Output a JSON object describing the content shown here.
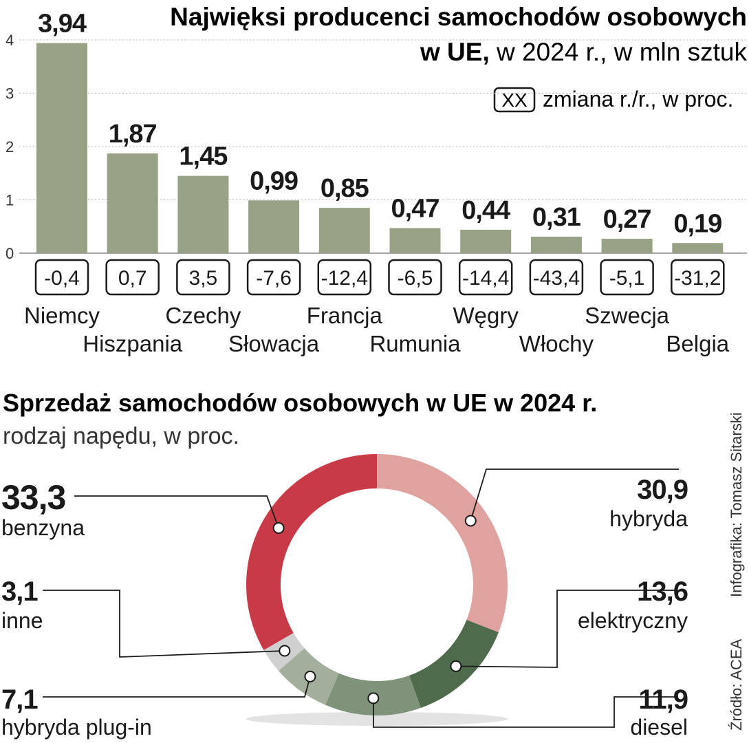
{
  "chart_data": [
    {
      "type": "bar",
      "title": "Najwięksi producenci samochodów osobowych",
      "subtitle_bold": "w UE,",
      "subtitle": " w 2024 r., w mln sztuk",
      "legend_box": "XX",
      "legend_text": "zmiana r./r., w proc.",
      "categories": [
        "Niemcy",
        "Hiszpania",
        "Czechy",
        "Słowacja",
        "Francja",
        "Rumunia",
        "Węgry",
        "Włochy",
        "Szwecja",
        "Belgia"
      ],
      "values": [
        3.94,
        1.87,
        1.45,
        0.99,
        0.85,
        0.47,
        0.44,
        0.31,
        0.27,
        0.19
      ],
      "value_labels": [
        "3,94",
        "1,87",
        "1,45",
        "0,99",
        "0,85",
        "0,47",
        "0,44",
        "0,31",
        "0,27",
        "0,19"
      ],
      "changes": [
        "-0,4",
        "0,7",
        "3,5",
        "-7,6",
        "-12,4",
        "-6,5",
        "-14,4",
        "-43,4",
        "-5,1",
        "-31,2"
      ],
      "yticks": [
        "0",
        "1",
        "2",
        "3",
        "4"
      ],
      "ylim": [
        0,
        4
      ],
      "grid": true,
      "bar_color": "#97a184"
    },
    {
      "type": "pie",
      "title": "Sprzedaż samochodów osobowych w UE w 2024 r.",
      "subtitle": "rodzaj napędu, w proc.",
      "slices": [
        {
          "name": "hybryda",
          "value": 30.9,
          "label": "30,9",
          "color": "#dfa29e"
        },
        {
          "name": "elektryczny",
          "value": 13.6,
          "label": "13,6",
          "color": "#4e6b4c"
        },
        {
          "name": "diesel",
          "value": 11.9,
          "label": "11,9",
          "color": "#7f927a"
        },
        {
          "name": "hybryda plug-in",
          "value": 7.1,
          "label": "7,1",
          "color": "#a3ae9c"
        },
        {
          "name": "inne",
          "value": 3.1,
          "label": "3,1",
          "color": "#d0d0d0"
        },
        {
          "name": "benzyna",
          "value": 33.3,
          "label": "33,3",
          "color": "#c93a47"
        }
      ]
    }
  ],
  "credits": {
    "infographic": "Infografika: Tomasz Sitarski",
    "source": "Źródło: ACEA"
  }
}
